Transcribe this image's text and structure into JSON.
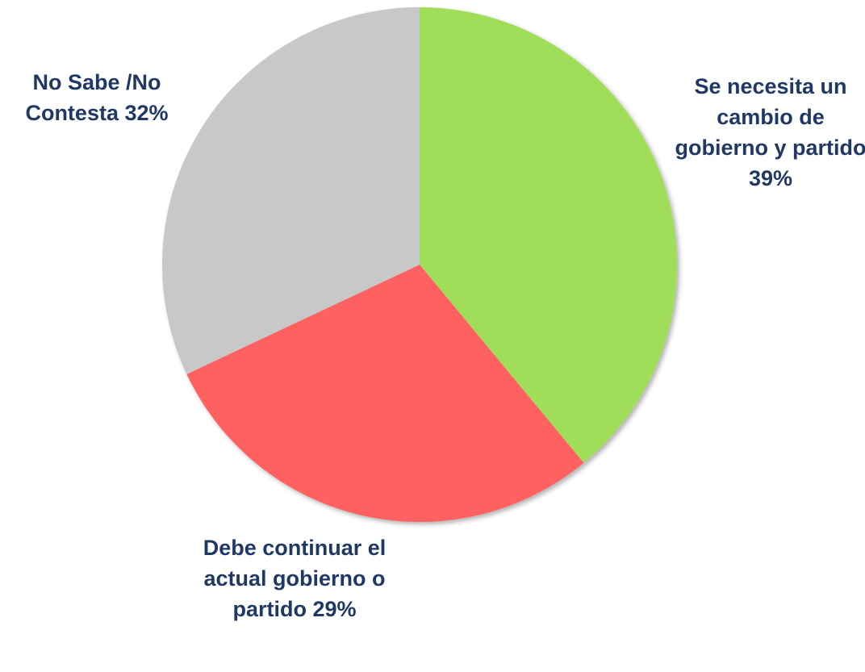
{
  "chart_data": {
    "type": "pie",
    "categories": [
      "Se necesita un cambio de gobierno y partido",
      "Debe continuar el actual gobierno o partido",
      "No Sabe /No Contesta"
    ],
    "values": [
      39,
      29,
      32
    ],
    "value_labels": [
      "39%",
      "29%",
      "32%"
    ],
    "colors": [
      "#a0de5a",
      "#ff6060",
      "#c8c8c8"
    ]
  }
}
